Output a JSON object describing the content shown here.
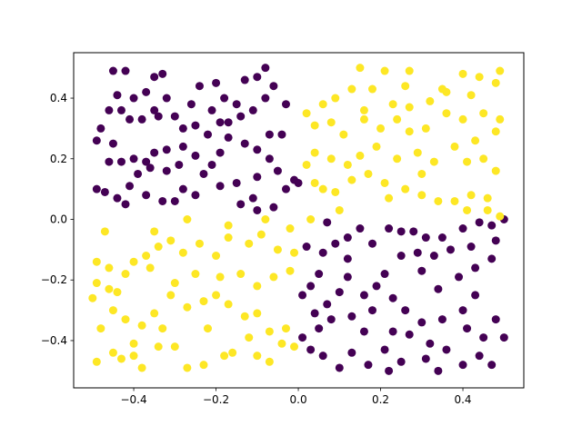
{
  "chart_data": {
    "type": "scatter",
    "xlim": [
      -0.546,
      0.548
    ],
    "ylim": [
      -0.556,
      0.55
    ],
    "xticks": [
      {
        "value": -0.4,
        "label": "−0.4"
      },
      {
        "value": -0.2,
        "label": "−0.2"
      },
      {
        "value": 0,
        "label": "0.0"
      },
      {
        "value": 0.2,
        "label": "0.2"
      },
      {
        "value": 0.4,
        "label": "0.4"
      }
    ],
    "yticks": [
      {
        "value": -0.4,
        "label": "−0.4"
      },
      {
        "value": -0.2,
        "label": "−0.2"
      },
      {
        "value": 0,
        "label": "0.0"
      },
      {
        "value": 0.2,
        "label": "0.2"
      },
      {
        "value": 0.4,
        "label": "0.4"
      }
    ],
    "series": [
      {
        "color": "#440154",
        "x": [
          -0.45,
          -0.42,
          -0.35,
          -0.33,
          -0.37,
          -0.4,
          -0.44,
          -0.46,
          -0.43,
          -0.41,
          -0.38,
          -0.35,
          -0.32,
          -0.3,
          -0.34,
          -0.49,
          -0.48,
          -0.45,
          -0.43,
          -0.46,
          -0.4,
          -0.37,
          -0.35,
          -0.32,
          -0.28,
          -0.29,
          -0.32,
          -0.36,
          -0.39,
          -0.41,
          -0.44,
          -0.49,
          -0.47,
          -0.42,
          -0.37,
          -0.33,
          -0.3,
          -0.28,
          -0.25,
          -0.23,
          -0.21,
          -0.25,
          -0.19,
          -0.22,
          -0.19,
          -0.17,
          -0.21,
          -0.18,
          -0.15,
          -0.13,
          -0.1,
          -0.08,
          -0.06,
          -0.08,
          -0.11,
          -0.14,
          -0.17,
          -0.13,
          -0.1,
          -0.07,
          -0.04,
          -0.03,
          -0.07,
          -0.05,
          -0.1,
          -0.15,
          -0.19,
          -0.14,
          -0.1,
          -0.06,
          -0.03,
          -0.01,
          0.0,
          -0.2,
          -0.24,
          -0.26,
          -0.28,
          -0.25,
          -0.11,
          0.07,
          0.09,
          0.12,
          0.15,
          0.18,
          0.22,
          0.25,
          0.28,
          0.31,
          0.35,
          0.4,
          0.44,
          0.47,
          0.5,
          0.48,
          0.42,
          0.37,
          0.33,
          0.29,
          0.25,
          0.21,
          0.19,
          0.16,
          0.23,
          0.3,
          0.34,
          0.39,
          0.43,
          0.47,
          0.43,
          0.4,
          0.35,
          0.3,
          0.27,
          0.32,
          0.36,
          0.31,
          0.34,
          0.4,
          0.44,
          0.47,
          0.45,
          0.41,
          0.48,
          0.5,
          0.25,
          0.21,
          0.22,
          0.17,
          0.13,
          0.1,
          0.06,
          0.03,
          0.01,
          0.05,
          0.08,
          0.04,
          0.07,
          0.1,
          0.03,
          0.05,
          0.06,
          0.02,
          0.01,
          0.13,
          0.16,
          0.18,
          0.12,
          0.12,
          0.26,
          0.23
        ],
        "values": [
          0.49,
          0.49,
          0.47,
          0.48,
          0.42,
          0.4,
          0.41,
          0.36,
          0.36,
          0.33,
          0.33,
          0.36,
          0.4,
          0.34,
          0.34,
          0.26,
          0.3,
          0.25,
          0.19,
          0.19,
          0.2,
          0.19,
          0.22,
          0.23,
          0.24,
          0.18,
          0.16,
          0.17,
          0.15,
          0.11,
          0.07,
          0.1,
          0.09,
          0.05,
          0.08,
          0.06,
          0.06,
          0.1,
          0.08,
          0.15,
          0.18,
          0.21,
          0.22,
          0.28,
          0.32,
          0.32,
          0.36,
          0.4,
          0.38,
          0.46,
          0.47,
          0.5,
          0.44,
          0.4,
          0.36,
          0.34,
          0.27,
          0.25,
          0.23,
          0.28,
          0.28,
          0.38,
          0.2,
          0.16,
          0.14,
          0.12,
          0.11,
          0.05,
          0.03,
          0.04,
          0.1,
          0.13,
          0.12,
          0.45,
          0.44,
          0.38,
          0.3,
          0.31,
          0.07,
          -0.01,
          -0.08,
          -0.06,
          -0.03,
          -0.08,
          -0.03,
          -0.04,
          -0.04,
          -0.06,
          -0.06,
          -0.03,
          -0.01,
          -0.02,
          0.0,
          -0.07,
          -0.09,
          -0.1,
          -0.12,
          -0.11,
          -0.12,
          -0.18,
          -0.22,
          -0.25,
          -0.26,
          -0.17,
          -0.23,
          -0.19,
          -0.16,
          -0.13,
          -0.25,
          -0.3,
          -0.33,
          -0.34,
          -0.38,
          -0.41,
          -0.43,
          -0.46,
          -0.5,
          -0.48,
          -0.45,
          -0.48,
          -0.39,
          -0.36,
          -0.33,
          -0.39,
          -0.47,
          -0.43,
          -0.5,
          -0.48,
          -0.44,
          -0.49,
          -0.45,
          -0.43,
          -0.39,
          -0.36,
          -0.33,
          -0.31,
          -0.28,
          -0.24,
          -0.22,
          -0.18,
          -0.11,
          -0.09,
          -0.25,
          -0.32,
          -0.37,
          -0.3,
          -0.19,
          -0.13,
          -0.3,
          -0.37
        ]
      },
      {
        "color": "#fde725",
        "x": [
          0.15,
          0.21,
          0.27,
          0.4,
          0.44,
          0.49,
          0.48,
          0.42,
          0.36,
          0.32,
          0.27,
          0.23,
          0.18,
          0.13,
          0.09,
          0.06,
          0.02,
          0.04,
          0.08,
          0.11,
          0.16,
          0.2,
          0.24,
          0.27,
          0.31,
          0.36,
          0.4,
          0.45,
          0.49,
          0.48,
          0.43,
          0.38,
          0.33,
          0.29,
          0.24,
          0.19,
          0.15,
          0.12,
          0.08,
          0.04,
          0.02,
          0.04,
          0.06,
          0.09,
          0.13,
          0.17,
          0.21,
          0.26,
          0.3,
          0.34,
          0.38,
          0.42,
          0.46,
          0.48,
          0.45,
          0.41,
          0.46,
          0.49,
          0.41,
          0.3,
          0.22,
          0.1,
          0.03,
          0.16,
          0.35,
          0.26,
          -0.49,
          -0.46,
          -0.49,
          -0.46,
          -0.44,
          -0.5,
          -0.48,
          -0.49,
          -0.45,
          -0.43,
          -0.4,
          -0.38,
          -0.34,
          -0.3,
          -0.27,
          -0.23,
          -0.18,
          -0.16,
          -0.1,
          -0.07,
          -0.04,
          -0.01,
          -0.03,
          -0.07,
          -0.1,
          -0.13,
          -0.17,
          -0.2,
          -0.23,
          -0.27,
          -0.31,
          -0.35,
          -0.38,
          -0.42,
          -0.45,
          -0.4,
          -0.37,
          -0.34,
          -0.31,
          -0.28,
          -0.24,
          -0.2,
          -0.17,
          -0.12,
          -0.09,
          -0.05,
          -0.01,
          -0.02,
          -0.06,
          -0.1,
          -0.14,
          -0.19,
          -0.25,
          -0.3,
          -0.36,
          -0.42,
          -0.47,
          -0.35,
          -0.27,
          -0.17,
          -0.08,
          -0.02,
          -0.33,
          -0.22,
          -0.12,
          -0.4
        ],
        "values": [
          0.5,
          0.49,
          0.49,
          0.48,
          0.47,
          0.49,
          0.45,
          0.41,
          0.42,
          0.39,
          0.37,
          0.38,
          0.43,
          0.43,
          0.4,
          0.38,
          0.35,
          0.31,
          0.32,
          0.28,
          0.33,
          0.3,
          0.33,
          0.29,
          0.3,
          0.35,
          0.33,
          0.35,
          0.33,
          0.29,
          0.26,
          0.24,
          0.19,
          0.22,
          0.2,
          0.24,
          0.21,
          0.18,
          0.2,
          0.22,
          0.18,
          0.12,
          0.1,
          0.09,
          0.13,
          0.15,
          0.12,
          0.1,
          0.08,
          0.06,
          0.06,
          0.08,
          0.07,
          0.16,
          0.2,
          0.19,
          0.03,
          0.01,
          0.03,
          0.15,
          0.07,
          0.03,
          0.0,
          0.36,
          0.43,
          0.44,
          -0.14,
          -0.16,
          -0.21,
          -0.23,
          -0.24,
          -0.26,
          -0.36,
          -0.47,
          -0.44,
          -0.46,
          -0.45,
          -0.49,
          -0.42,
          -0.42,
          -0.49,
          -0.48,
          -0.45,
          -0.44,
          -0.45,
          -0.47,
          -0.41,
          -0.42,
          -0.36,
          -0.37,
          -0.31,
          -0.32,
          -0.28,
          -0.25,
          -0.27,
          -0.29,
          -0.25,
          -0.31,
          -0.35,
          -0.33,
          -0.3,
          -0.14,
          -0.12,
          -0.09,
          -0.07,
          -0.11,
          -0.08,
          -0.12,
          -0.06,
          -0.08,
          -0.05,
          -0.1,
          -0.11,
          -0.17,
          -0.19,
          -0.22,
          -0.18,
          -0.19,
          -0.18,
          -0.21,
          -0.16,
          -0.18,
          -0.04,
          -0.04,
          0.0,
          -0.02,
          0.0,
          -0.03,
          -0.36,
          -0.36,
          -0.39,
          -0.41
        ]
      }
    ]
  }
}
